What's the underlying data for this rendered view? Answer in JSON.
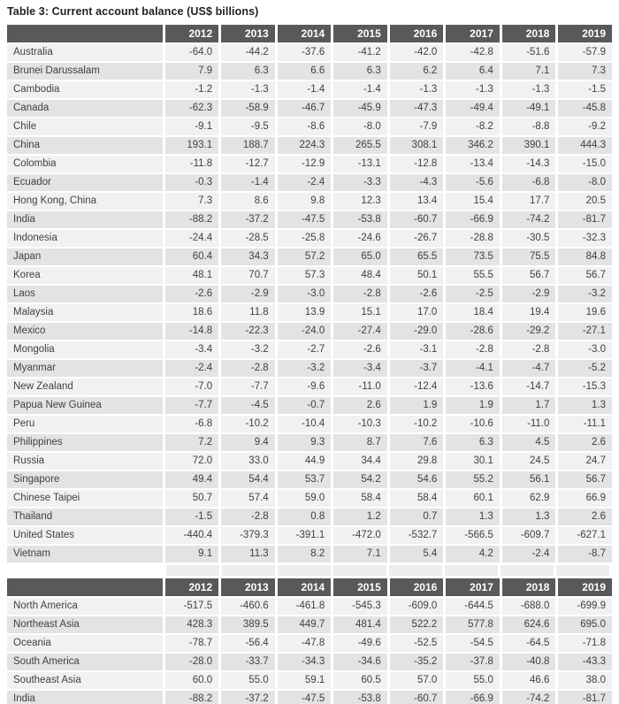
{
  "title": "Table 3: Current account balance (US$ billions)",
  "colors": {
    "header_bg": "#58595b",
    "header_text": "#ffffff",
    "row_light": "#f1f1f2",
    "row_dark": "#e2e3e4",
    "spacer_cell": "#ededee",
    "body_text": "#414042",
    "title_text": "#231f20"
  },
  "columns": [
    "2012",
    "2013",
    "2014",
    "2015",
    "2016",
    "2017",
    "2018",
    "2019"
  ],
  "country_table": {
    "rows": [
      {
        "label": "Australia",
        "values": [
          "-64.0",
          "-44.2",
          "-37.6",
          "-41.2",
          "-42.0",
          "-42.8",
          "-51.6",
          "-57.9"
        ]
      },
      {
        "label": "Brunei Darussalam",
        "values": [
          "7.9",
          "6.3",
          "6.6",
          "6.3",
          "6.2",
          "6.4",
          "7.1",
          "7.3"
        ]
      },
      {
        "label": "Cambodia",
        "values": [
          "-1.2",
          "-1.3",
          "-1.4",
          "-1.4",
          "-1.3",
          "-1.3",
          "-1.3",
          "-1.5"
        ]
      },
      {
        "label": "Canada",
        "values": [
          "-62.3",
          "-58.9",
          "-46.7",
          "-45.9",
          "-47.3",
          "-49.4",
          "-49.1",
          "-45.8"
        ]
      },
      {
        "label": "Chile",
        "values": [
          "-9.1",
          "-9.5",
          "-8.6",
          "-8.0",
          "-7.9",
          "-8.2",
          "-8.8",
          "-9.2"
        ]
      },
      {
        "label": "China",
        "values": [
          "193.1",
          "188.7",
          "224.3",
          "265.5",
          "308.1",
          "346.2",
          "390.1",
          "444.3"
        ]
      },
      {
        "label": "Colombia",
        "values": [
          "-11.8",
          "-12.7",
          "-12.9",
          "-13.1",
          "-12.8",
          "-13.4",
          "-14.3",
          "-15.0"
        ]
      },
      {
        "label": "Ecuador",
        "values": [
          "-0.3",
          "-1.4",
          "-2.4",
          "-3.3",
          "-4.3",
          "-5.6",
          "-6.8",
          "-8.0"
        ]
      },
      {
        "label": "Hong Kong, China",
        "values": [
          "7.3",
          "8.6",
          "9.8",
          "12.3",
          "13.4",
          "15.4",
          "17.7",
          "20.5"
        ]
      },
      {
        "label": "India",
        "values": [
          "-88.2",
          "-37.2",
          "-47.5",
          "-53.8",
          "-60.7",
          "-66.9",
          "-74.2",
          "-81.7"
        ]
      },
      {
        "label": "Indonesia",
        "values": [
          "-24.4",
          "-28.5",
          "-25.8",
          "-24.6",
          "-26.7",
          "-28.8",
          "-30.5",
          "-32.3"
        ]
      },
      {
        "label": "Japan",
        "values": [
          "60.4",
          "34.3",
          "57.2",
          "65.0",
          "65.5",
          "73.5",
          "75.5",
          "84.8"
        ]
      },
      {
        "label": "Korea",
        "values": [
          "48.1",
          "70.7",
          "57.3",
          "48.4",
          "50.1",
          "55.5",
          "56.7",
          "56.7"
        ]
      },
      {
        "label": "Laos",
        "values": [
          "-2.6",
          "-2.9",
          "-3.0",
          "-2.8",
          "-2.6",
          "-2.5",
          "-2.9",
          "-3.2"
        ]
      },
      {
        "label": "Malaysia",
        "values": [
          "18.6",
          "11.8",
          "13.9",
          "15.1",
          "17.0",
          "18.4",
          "19.4",
          "19.6"
        ]
      },
      {
        "label": "Mexico",
        "values": [
          "-14.8",
          "-22.3",
          "-24.0",
          "-27.4",
          "-29.0",
          "-28.6",
          "-29.2",
          "-27.1"
        ]
      },
      {
        "label": "Mongolia",
        "values": [
          "-3.4",
          "-3.2",
          "-2.7",
          "-2.6",
          "-3.1",
          "-2.8",
          "-2.8",
          "-3.0"
        ]
      },
      {
        "label": "Myanmar",
        "values": [
          "-2.4",
          "-2.8",
          "-3.2",
          "-3.4",
          "-3.7",
          "-4.1",
          "-4.7",
          "-5.2"
        ]
      },
      {
        "label": "New Zealand",
        "values": [
          "-7.0",
          "-7.7",
          "-9.6",
          "-11.0",
          "-12.4",
          "-13.6",
          "-14.7",
          "-15.3"
        ]
      },
      {
        "label": "Papua New Guinea",
        "values": [
          "-7.7",
          "-4.5",
          "-0.7",
          "2.6",
          "1.9",
          "1.9",
          "1.7",
          "1.3"
        ]
      },
      {
        "label": "Peru",
        "values": [
          "-6.8",
          "-10.2",
          "-10.4",
          "-10.3",
          "-10.2",
          "-10.6",
          "-11.0",
          "-11.1"
        ]
      },
      {
        "label": "Philippines",
        "values": [
          "7.2",
          "9.4",
          "9.3",
          "8.7",
          "7.6",
          "6.3",
          "4.5",
          "2.6"
        ]
      },
      {
        "label": "Russia",
        "values": [
          "72.0",
          "33.0",
          "44.9",
          "34.4",
          "29.8",
          "30.1",
          "24.5",
          "24.7"
        ]
      },
      {
        "label": "Singapore",
        "values": [
          "49.4",
          "54.4",
          "53.7",
          "54.2",
          "54.6",
          "55.2",
          "56.1",
          "56.7"
        ]
      },
      {
        "label": "Chinese Taipei",
        "values": [
          "50.7",
          "57.4",
          "59.0",
          "58.4",
          "58.4",
          "60.1",
          "62.9",
          "66.9"
        ]
      },
      {
        "label": "Thailand",
        "values": [
          "-1.5",
          "-2.8",
          "0.8",
          "1.2",
          "0.7",
          "1.3",
          "1.3",
          "2.6"
        ]
      },
      {
        "label": "United States",
        "values": [
          "-440.4",
          "-379.3",
          "-391.1",
          "-472.0",
          "-532.7",
          "-566.5",
          "-609.7",
          "-627.1"
        ]
      },
      {
        "label": "Vietnam",
        "values": [
          "9.1",
          "11.3",
          "8.2",
          "7.1",
          "5.4",
          "4.2",
          "-2.4",
          "-8.7"
        ]
      }
    ]
  },
  "region_table": {
    "rows": [
      {
        "label": "North America",
        "values": [
          "-517.5",
          "-460.6",
          "-461.8",
          "-545.3",
          "-609.0",
          "-644.5",
          "-688.0",
          "-699.9"
        ]
      },
      {
        "label": "Northeast Asia",
        "values": [
          "428.3",
          "389.5",
          "449.7",
          "481.4",
          "522.2",
          "577.8",
          "624.6",
          "695.0"
        ]
      },
      {
        "label": "Oceania",
        "values": [
          "-78.7",
          "-56.4",
          "-47.8",
          "-49.6",
          "-52.5",
          "-54.5",
          "-64.5",
          "-71.8"
        ]
      },
      {
        "label": "South America",
        "values": [
          "-28.0",
          "-33.7",
          "-34.3",
          "-34.6",
          "-35.2",
          "-37.8",
          "-40.8",
          "-43.3"
        ]
      },
      {
        "label": "Southeast Asia",
        "values": [
          "60.0",
          "55.0",
          "59.1",
          "60.5",
          "57.0",
          "55.0",
          "46.6",
          "38.0"
        ]
      },
      {
        "label": "India",
        "values": [
          "-88.2",
          "-37.2",
          "-47.5",
          "-53.8",
          "-60.7",
          "-66.9",
          "-74.2",
          "-81.7"
        ]
      }
    ]
  }
}
